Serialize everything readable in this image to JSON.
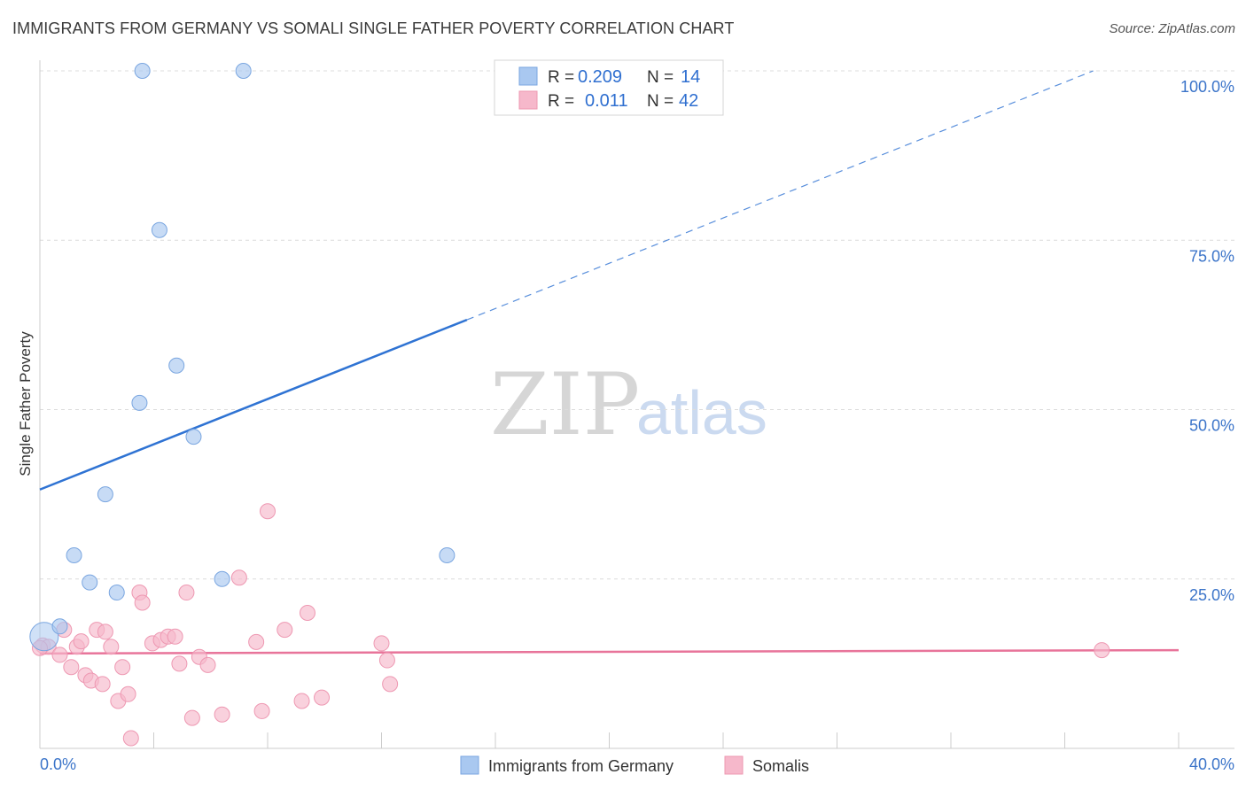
{
  "header": {
    "title": "IMMIGRANTS FROM GERMANY VS SOMALI SINGLE FATHER POVERTY CORRELATION CHART",
    "source": "Source: ZipAtlas.com"
  },
  "watermark": {
    "zip": "ZIP",
    "atlas": "atlas"
  },
  "legend": {
    "rows": [
      {
        "r_label": "R =",
        "r_value": "0.209",
        "n_label": "N =",
        "n_value": "14",
        "color": "#a9c8f0"
      },
      {
        "r_label": "R =",
        "r_value": "0.011",
        "n_label": "N =",
        "n_value": "42",
        "color": "#f6b8cb"
      }
    ]
  },
  "chart_data": {
    "type": "scatter",
    "title": "IMMIGRANTS FROM GERMANY VS SOMALI SINGLE FATHER POVERTY CORRELATION CHART",
    "xlabel": "",
    "ylabel": "Single Father Poverty",
    "xlim": [
      0,
      40
    ],
    "ylim": [
      0,
      100
    ],
    "x_tick_labels": [
      "0.0%",
      "40.0%"
    ],
    "y_tick_labels": [
      "100.0%",
      "75.0%",
      "50.0%",
      "25.0%"
    ],
    "y_ticks": [
      100,
      75,
      50,
      25
    ],
    "grid": true,
    "series": [
      {
        "name": "Immigrants from Germany",
        "color": "#a9c8f0",
        "stroke": "#7aa6e0",
        "line_color": "#2f73d3",
        "trend": {
          "x0": 0,
          "y0": 38.2,
          "x_solid_end": 15.0,
          "x1": 37.0,
          "y1": 100.0
        },
        "points": [
          [
            0.15,
            16.5
          ],
          [
            0.7,
            18.0
          ],
          [
            1.2,
            28.5
          ],
          [
            1.75,
            24.5
          ],
          [
            2.3,
            37.5
          ],
          [
            2.7,
            23.0
          ],
          [
            3.5,
            51.0
          ],
          [
            3.6,
            100.0
          ],
          [
            4.2,
            76.5
          ],
          [
            4.8,
            56.5
          ],
          [
            5.4,
            46.0
          ],
          [
            6.4,
            25.0
          ],
          [
            7.15,
            100.0
          ],
          [
            14.3,
            28.5
          ]
        ]
      },
      {
        "name": "Somalis",
        "color": "#f6b8cb",
        "stroke": "#ee98b2",
        "line_color": "#e8749a",
        "trend": {
          "x0": 0,
          "y0": 14.0,
          "x1": 40.0,
          "y1": 14.5
        },
        "points": [
          [
            0.1,
            15.2
          ],
          [
            0.3,
            15.0
          ],
          [
            0.7,
            13.8
          ],
          [
            0.85,
            17.5
          ],
          [
            1.1,
            12.0
          ],
          [
            1.3,
            15.0
          ],
          [
            1.45,
            15.8
          ],
          [
            1.6,
            10.8
          ],
          [
            1.8,
            10.0
          ],
          [
            2.0,
            17.5
          ],
          [
            2.2,
            9.5
          ],
          [
            2.3,
            17.2
          ],
          [
            2.5,
            15.0
          ],
          [
            2.75,
            7.0
          ],
          [
            2.9,
            12.0
          ],
          [
            3.1,
            8.0
          ],
          [
            3.2,
            1.5
          ],
          [
            3.5,
            23.0
          ],
          [
            3.6,
            21.5
          ],
          [
            3.95,
            15.5
          ],
          [
            4.25,
            16.0
          ],
          [
            4.5,
            16.5
          ],
          [
            4.75,
            16.5
          ],
          [
            4.9,
            12.5
          ],
          [
            5.15,
            23.0
          ],
          [
            5.35,
            4.5
          ],
          [
            5.6,
            13.5
          ],
          [
            5.9,
            12.3
          ],
          [
            6.4,
            5.0
          ],
          [
            7.0,
            25.2
          ],
          [
            7.6,
            15.7
          ],
          [
            7.8,
            5.5
          ],
          [
            8.0,
            35.0
          ],
          [
            8.6,
            17.5
          ],
          [
            9.2,
            7.0
          ],
          [
            9.4,
            20.0
          ],
          [
            9.9,
            7.5
          ],
          [
            12.0,
            15.5
          ],
          [
            12.2,
            13.0
          ],
          [
            12.3,
            9.5
          ],
          [
            37.3,
            14.5
          ],
          [
            0.0,
            14.8
          ]
        ]
      }
    ]
  },
  "bottom_legend": {
    "items": [
      {
        "label": "Immigrants from Germany",
        "color": "#a9c8f0"
      },
      {
        "label": "Somalis",
        "color": "#f6b8cb"
      }
    ]
  }
}
